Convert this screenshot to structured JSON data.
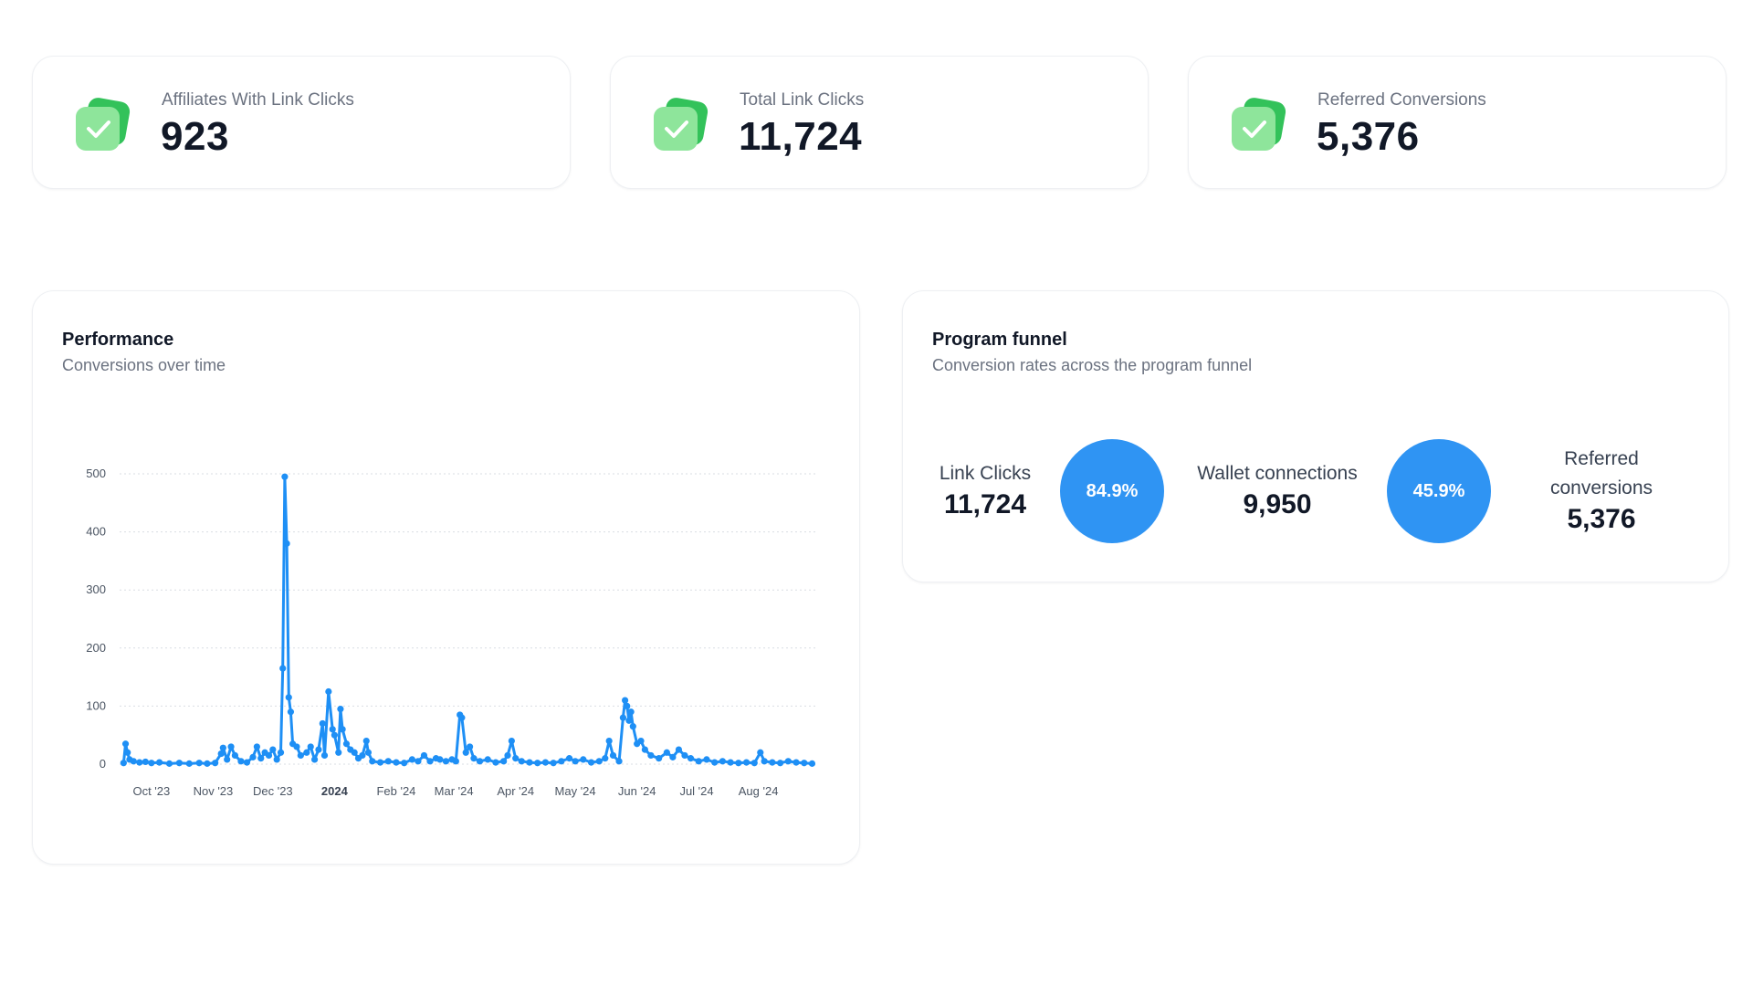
{
  "colors": {
    "accent": "#2f94f3",
    "line": "#1e8ff5",
    "icon_green_light": "#8ee59b",
    "icon_green_dark": "#33c25a"
  },
  "stats": [
    {
      "label": "Affiliates With Link Clicks",
      "value": "923",
      "icon": "check-badge-icon"
    },
    {
      "label": "Total Link Clicks",
      "value": "11,724",
      "icon": "check-badge-icon"
    },
    {
      "label": "Referred Conversions",
      "value": "5,376",
      "icon": "check-badge-icon"
    }
  ],
  "performance": {
    "title": "Performance",
    "subtitle": "Conversions over time"
  },
  "funnel": {
    "title": "Program funnel",
    "subtitle": "Conversion rates across the program funnel",
    "steps": [
      {
        "label": "Link Clicks",
        "value": "11,724"
      },
      {
        "label": "Wallet connections",
        "value": "9,950"
      },
      {
        "label_line1": "Referred",
        "label_line2": "conversions",
        "value": "5,376"
      }
    ],
    "rates": [
      "84.9%",
      "45.9%"
    ]
  },
  "chart_data": {
    "type": "line",
    "title": "Performance",
    "subtitle": "Conversions over time",
    "xlabel": "",
    "ylabel": "",
    "ylim": [
      0,
      500
    ],
    "yticks": [
      0,
      100,
      200,
      300,
      400,
      500
    ],
    "x_ticks": [
      "Oct '23",
      "Nov '23",
      "Dec '23",
      "2024",
      "Feb '24",
      "Mar '24",
      "Apr '24",
      "May '24",
      "Jun '24",
      "Jul '24",
      "Aug '24"
    ],
    "grid": true,
    "points": [
      [
        "2023-09-17",
        2
      ],
      [
        "2023-09-18",
        35
      ],
      [
        "2023-09-19",
        20
      ],
      [
        "2023-09-20",
        8
      ],
      [
        "2023-09-22",
        5
      ],
      [
        "2023-09-25",
        3
      ],
      [
        "2023-09-28",
        4
      ],
      [
        "2023-10-01",
        2
      ],
      [
        "2023-10-05",
        3
      ],
      [
        "2023-10-10",
        1
      ],
      [
        "2023-10-15",
        2
      ],
      [
        "2023-10-20",
        1
      ],
      [
        "2023-10-25",
        2
      ],
      [
        "2023-10-29",
        1
      ],
      [
        "2023-11-02",
        2
      ],
      [
        "2023-11-05",
        18
      ],
      [
        "2023-11-06",
        28
      ],
      [
        "2023-11-08",
        8
      ],
      [
        "2023-11-10",
        30
      ],
      [
        "2023-11-12",
        15
      ],
      [
        "2023-11-15",
        5
      ],
      [
        "2023-11-18",
        3
      ],
      [
        "2023-11-21",
        12
      ],
      [
        "2023-11-23",
        30
      ],
      [
        "2023-11-25",
        10
      ],
      [
        "2023-11-27",
        20
      ],
      [
        "2023-11-29",
        15
      ],
      [
        "2023-12-01",
        25
      ],
      [
        "2023-12-03",
        8
      ],
      [
        "2023-12-05",
        20
      ],
      [
        "2023-12-06",
        165
      ],
      [
        "2023-12-07",
        495
      ],
      [
        "2023-12-08",
        380
      ],
      [
        "2023-12-09",
        115
      ],
      [
        "2023-12-10",
        90
      ],
      [
        "2023-12-11",
        35
      ],
      [
        "2023-12-13",
        30
      ],
      [
        "2023-12-15",
        15
      ],
      [
        "2023-12-18",
        20
      ],
      [
        "2023-12-20",
        30
      ],
      [
        "2023-12-22",
        8
      ],
      [
        "2023-12-24",
        25
      ],
      [
        "2023-12-26",
        70
      ],
      [
        "2023-12-27",
        15
      ],
      [
        "2023-12-29",
        125
      ],
      [
        "2023-12-31",
        60
      ],
      [
        "2024-01-01",
        50
      ],
      [
        "2024-01-03",
        20
      ],
      [
        "2024-01-04",
        95
      ],
      [
        "2024-01-05",
        60
      ],
      [
        "2024-01-07",
        35
      ],
      [
        "2024-01-09",
        25
      ],
      [
        "2024-01-11",
        20
      ],
      [
        "2024-01-13",
        10
      ],
      [
        "2024-01-15",
        15
      ],
      [
        "2024-01-17",
        40
      ],
      [
        "2024-01-18",
        20
      ],
      [
        "2024-01-20",
        5
      ],
      [
        "2024-01-24",
        3
      ],
      [
        "2024-01-28",
        5
      ],
      [
        "2024-02-01",
        3
      ],
      [
        "2024-02-05",
        2
      ],
      [
        "2024-02-09",
        8
      ],
      [
        "2024-02-12",
        5
      ],
      [
        "2024-02-15",
        15
      ],
      [
        "2024-02-18",
        5
      ],
      [
        "2024-02-21",
        10
      ],
      [
        "2024-02-23",
        8
      ],
      [
        "2024-02-26",
        5
      ],
      [
        "2024-02-29",
        8
      ],
      [
        "2024-03-02",
        5
      ],
      [
        "2024-03-04",
        85
      ],
      [
        "2024-03-05",
        80
      ],
      [
        "2024-03-07",
        20
      ],
      [
        "2024-03-09",
        30
      ],
      [
        "2024-03-11",
        10
      ],
      [
        "2024-03-14",
        5
      ],
      [
        "2024-03-18",
        8
      ],
      [
        "2024-03-22",
        3
      ],
      [
        "2024-03-26",
        5
      ],
      [
        "2024-03-28",
        15
      ],
      [
        "2024-03-30",
        40
      ],
      [
        "2024-04-01",
        10
      ],
      [
        "2024-04-04",
        5
      ],
      [
        "2024-04-08",
        3
      ],
      [
        "2024-04-12",
        2
      ],
      [
        "2024-04-16",
        3
      ],
      [
        "2024-04-20",
        2
      ],
      [
        "2024-04-24",
        5
      ],
      [
        "2024-04-28",
        10
      ],
      [
        "2024-05-01",
        5
      ],
      [
        "2024-05-05",
        8
      ],
      [
        "2024-05-09",
        3
      ],
      [
        "2024-05-13",
        5
      ],
      [
        "2024-05-16",
        10
      ],
      [
        "2024-05-18",
        40
      ],
      [
        "2024-05-20",
        15
      ],
      [
        "2024-05-23",
        5
      ],
      [
        "2024-05-25",
        80
      ],
      [
        "2024-05-26",
        110
      ],
      [
        "2024-05-27",
        100
      ],
      [
        "2024-05-28",
        75
      ],
      [
        "2024-05-29",
        90
      ],
      [
        "2024-05-30",
        65
      ],
      [
        "2024-06-01",
        35
      ],
      [
        "2024-06-03",
        40
      ],
      [
        "2024-06-05",
        25
      ],
      [
        "2024-06-08",
        15
      ],
      [
        "2024-06-12",
        10
      ],
      [
        "2024-06-16",
        20
      ],
      [
        "2024-06-19",
        12
      ],
      [
        "2024-06-22",
        25
      ],
      [
        "2024-06-25",
        15
      ],
      [
        "2024-06-28",
        10
      ],
      [
        "2024-07-02",
        5
      ],
      [
        "2024-07-06",
        8
      ],
      [
        "2024-07-10",
        3
      ],
      [
        "2024-07-14",
        5
      ],
      [
        "2024-07-18",
        3
      ],
      [
        "2024-07-22",
        2
      ],
      [
        "2024-07-26",
        3
      ],
      [
        "2024-07-30",
        2
      ],
      [
        "2024-08-02",
        20
      ],
      [
        "2024-08-04",
        5
      ],
      [
        "2024-08-08",
        3
      ],
      [
        "2024-08-12",
        2
      ],
      [
        "2024-08-16",
        5
      ],
      [
        "2024-08-20",
        3
      ],
      [
        "2024-08-24",
        2
      ],
      [
        "2024-08-28",
        1
      ]
    ]
  }
}
